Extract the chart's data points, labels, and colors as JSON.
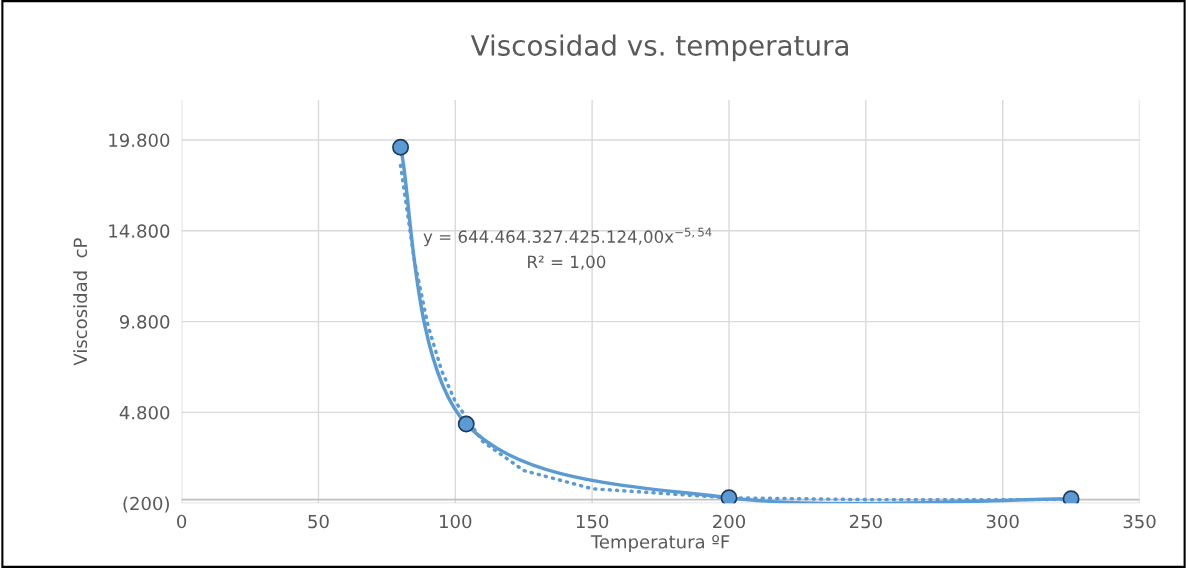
{
  "chart_data": {
    "type": "line",
    "title": "Viscosidad vs. temperatura",
    "xlabel": "Temperatura ºF",
    "ylabel": "Viscosidad  cP",
    "x": [
      80,
      104,
      200,
      325
    ],
    "series": [
      {
        "color": "#5b9bd5",
        "values": [
          19400,
          4160,
          100,
          50
        ],
        "marker": "circle",
        "line_style": "solid"
      },
      {
        "color": "#5b9bd5",
        "x": [
          80,
          85,
          90,
          95,
          100,
          110,
          125,
          150,
          200,
          250,
          325
        ],
        "values": [
          18400,
          13200,
          9600,
          7100,
          5400,
          3200,
          1600,
          600,
          100,
          0,
          0
        ],
        "marker": "none",
        "line_style": "dotted"
      }
    ],
    "annotations": [
      "y = 644.464.327.425.124,00x$^{−5,54}$",
      "R² = 1,00"
    ],
    "xlim": [
      0,
      350
    ],
    "xticks": [
      0,
      50,
      100,
      150,
      200,
      250,
      300,
      350
    ],
    "ylim": [
      -200,
      22000
    ],
    "yticks": [
      {
        "value": -200,
        "label": "(200)"
      },
      {
        "value": 4800,
        "label": "4.800"
      },
      {
        "value": 9800,
        "label": "9.800"
      },
      {
        "value": 14800,
        "label": "14.800"
      },
      {
        "value": 19800,
        "label": "19.800"
      }
    ],
    "grid": true,
    "legend": false
  }
}
